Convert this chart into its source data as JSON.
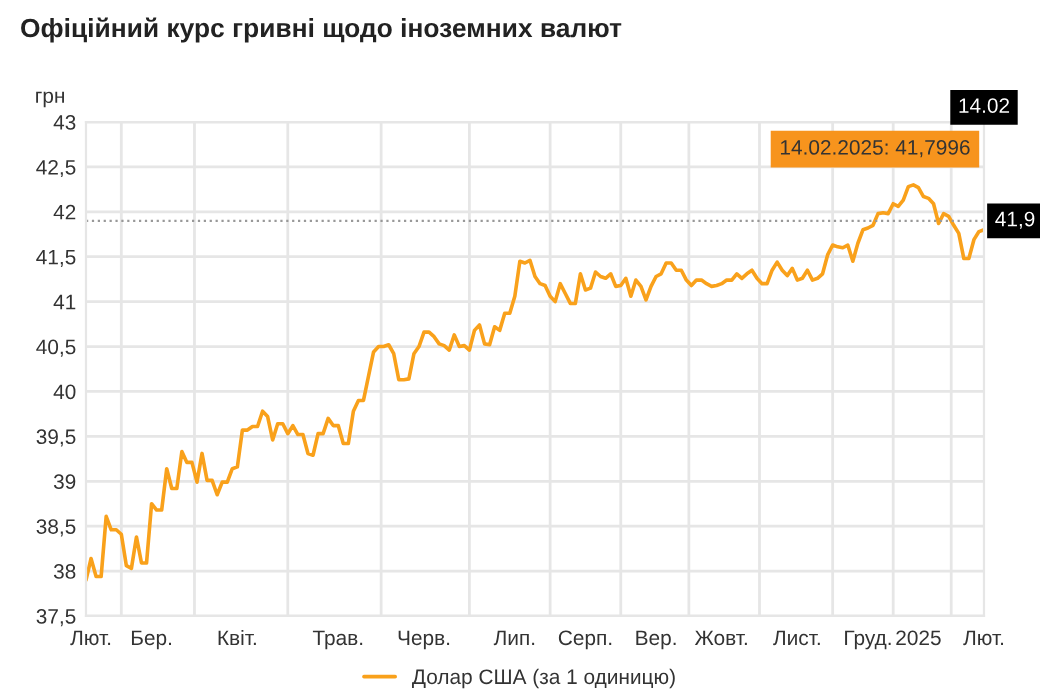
{
  "chart_data": {
    "type": "line",
    "title": "Офіційний курс гривні щодо іноземних валют",
    "ylabel": "грн",
    "categories": [
      null,
      "Лют.",
      null,
      null,
      null,
      null,
      null,
      null,
      null,
      null,
      null,
      null,
      null,
      "Бер.",
      null,
      null,
      null,
      null,
      null,
      null,
      null,
      null,
      null,
      null,
      null,
      null,
      null,
      null,
      null,
      null,
      "Квіт.",
      null,
      null,
      null,
      null,
      null,
      null,
      null,
      null,
      null,
      null,
      null,
      null,
      null,
      null,
      null,
      null,
      null,
      null,
      null,
      "Трав.",
      null,
      null,
      null,
      null,
      null,
      null,
      null,
      null,
      null,
      null,
      null,
      null,
      null,
      null,
      null,
      null,
      "Черв.",
      null,
      null,
      null,
      null,
      null,
      null,
      null,
      null,
      null,
      null,
      null,
      null,
      null,
      null,
      null,
      null,
      null,
      "Лип.",
      null,
      null,
      null,
      null,
      null,
      null,
      null,
      null,
      null,
      null,
      null,
      null,
      null,
      "Серп.",
      null,
      null,
      null,
      null,
      null,
      null,
      null,
      null,
      null,
      null,
      null,
      null,
      null,
      "Вер.",
      null,
      null,
      null,
      null,
      null,
      null,
      null,
      null,
      null,
      null,
      null,
      null,
      "Жовт.",
      null,
      null,
      null,
      null,
      null,
      null,
      null,
      null,
      null,
      null,
      null,
      null,
      null,
      null,
      "Лист.",
      null,
      null,
      null,
      null,
      null,
      null,
      null,
      null,
      null,
      null,
      null,
      null,
      null,
      "Груд.",
      null,
      null,
      null,
      null,
      null,
      null,
      null,
      null,
      null,
      "2025",
      null,
      null,
      null,
      null,
      null,
      null,
      null,
      null,
      null,
      null,
      null,
      null,
      "Лют."
    ],
    "ylim": [
      37.5,
      43
    ],
    "yticks": [
      {
        "value": 37.5,
        "label": "37,5"
      },
      38,
      {
        "value": 38.5,
        "label": "38,5"
      },
      39,
      {
        "value": 39.5,
        "label": "39,5"
      },
      40,
      {
        "value": 40.5,
        "label": "40,5"
      },
      41,
      {
        "value": 41.5,
        "label": "41,5"
      },
      42,
      {
        "value": 42.5,
        "label": "42,5"
      },
      43
    ],
    "grid": true,
    "legend": "bottom",
    "marker": "none",
    "line_style": "solid",
    "ref_lines": [
      {
        "axis": "y",
        "value": 41.9,
        "label": "41,9",
        "color": "#999999",
        "line_style": "dotted"
      }
    ],
    "annotations": [
      "14.02",
      "14.02.2025: 41,7996"
    ],
    "series": [
      {
        "name": "Долар США (за 1 одиницю)",
        "color": "#f9a11b",
        "values": [
          37.9,
          38.14,
          37.94,
          37.94,
          38.61,
          38.46,
          38.46,
          38.41,
          38.06,
          38.03,
          38.38,
          38.09,
          38.09,
          38.75,
          38.68,
          38.68,
          39.14,
          38.92,
          38.92,
          39.33,
          39.21,
          39.21,
          38.99,
          39.31,
          39.01,
          39.01,
          38.85,
          38.99,
          38.99,
          39.14,
          39.16,
          39.57,
          39.57,
          39.61,
          39.61,
          39.78,
          39.72,
          39.46,
          39.64,
          39.64,
          39.53,
          39.62,
          39.52,
          39.52,
          39.31,
          39.29,
          39.53,
          39.53,
          39.7,
          39.62,
          39.62,
          39.42,
          39.42,
          39.78,
          39.9,
          39.9,
          40.17,
          40.44,
          40.5,
          40.5,
          40.52,
          40.42,
          40.13,
          40.13,
          40.14,
          40.42,
          40.5,
          40.66,
          40.66,
          40.61,
          40.53,
          40.51,
          40.46,
          40.63,
          40.5,
          40.51,
          40.46,
          40.68,
          40.74,
          40.53,
          40.52,
          40.72,
          40.68,
          40.87,
          40.87,
          41.06,
          41.45,
          41.43,
          41.46,
          41.28,
          41.2,
          41.18,
          41.06,
          41.0,
          41.2,
          41.09,
          40.98,
          40.98,
          41.31,
          41.13,
          41.15,
          41.33,
          41.28,
          41.26,
          41.31,
          41.17,
          41.18,
          41.26,
          41.06,
          41.24,
          41.17,
          41.02,
          41.17,
          41.28,
          41.31,
          41.43,
          41.43,
          41.35,
          41.35,
          41.24,
          41.18,
          41.24,
          41.24,
          41.2,
          41.17,
          41.18,
          41.2,
          41.24,
          41.24,
          41.31,
          41.26,
          41.31,
          41.35,
          41.26,
          41.2,
          41.2,
          41.35,
          41.44,
          41.35,
          41.29,
          41.37,
          41.24,
          41.26,
          41.35,
          41.24,
          41.26,
          41.31,
          41.52,
          41.63,
          41.61,
          41.6,
          41.63,
          41.45,
          41.65,
          41.8,
          41.82,
          41.85,
          41.98,
          41.99,
          41.98,
          42.09,
          42.06,
          42.13,
          42.28,
          42.3,
          42.27,
          42.17,
          42.15,
          42.09,
          41.87,
          41.98,
          41.95,
          41.85,
          41.76,
          41.48,
          41.48,
          41.69,
          41.78,
          41.8
        ]
      }
    ]
  }
}
